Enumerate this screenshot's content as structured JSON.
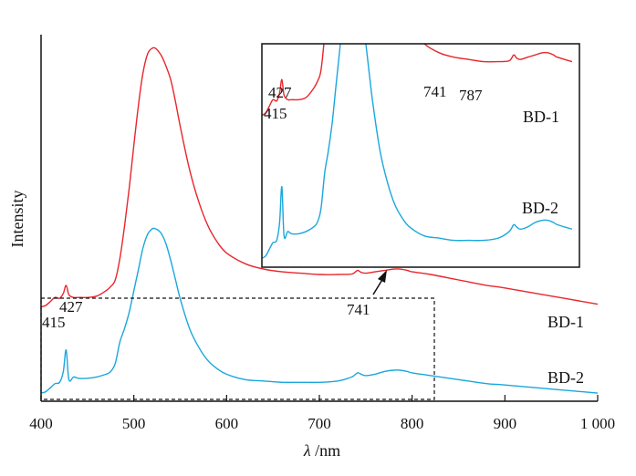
{
  "chart_data": {
    "type": "line",
    "xlabel_italic": "λ",
    "xlabel_unit": " /nm",
    "ylabel": "Intensity",
    "xlim": [
      400,
      1000
    ],
    "xticks": [
      400,
      500,
      600,
      700,
      800,
      900,
      1000
    ],
    "xtick_labels": [
      "400",
      "500",
      "600",
      "700",
      "800",
      "900",
      "1 000"
    ],
    "grid": false,
    "colors": {
      "BD-1": "#e8262c",
      "BD-2": "#1aa7dd"
    },
    "series": [
      {
        "name": "BD-1",
        "x": [
          400,
          405,
          410,
          415,
          420,
          424,
          427,
          430,
          435,
          440,
          450,
          460,
          470,
          475,
          480,
          485,
          490,
          495,
          500,
          505,
          510,
          515,
          520,
          523,
          526,
          530,
          535,
          540,
          545,
          550,
          560,
          570,
          580,
          590,
          600,
          620,
          640,
          660,
          680,
          700,
          720,
          735,
          741,
          745,
          750,
          760,
          770,
          780,
          787,
          795,
          800,
          820,
          850,
          880,
          900,
          950,
          1000
        ],
        "y": [
          0.04,
          0.045,
          0.06,
          0.075,
          0.072,
          0.09,
          0.12,
          0.085,
          0.075,
          0.075,
          0.075,
          0.08,
          0.1,
          0.115,
          0.14,
          0.22,
          0.34,
          0.48,
          0.64,
          0.79,
          0.91,
          0.98,
          1.0,
          1.0,
          0.99,
          0.97,
          0.93,
          0.88,
          0.8,
          0.71,
          0.55,
          0.43,
          0.34,
          0.28,
          0.24,
          0.2,
          0.18,
          0.17,
          0.165,
          0.16,
          0.16,
          0.162,
          0.175,
          0.168,
          0.165,
          0.17,
          0.175,
          0.18,
          0.18,
          0.175,
          0.17,
          0.16,
          0.14,
          0.12,
          0.11,
          0.08,
          0.05
        ]
      },
      {
        "name": "BD-2",
        "x": [
          400,
          405,
          410,
          415,
          420,
          424,
          427,
          430,
          435,
          440,
          450,
          460,
          470,
          475,
          480,
          485,
          490,
          495,
          500,
          505,
          510,
          515,
          520,
          523,
          526,
          530,
          535,
          540,
          545,
          550,
          560,
          570,
          580,
          590,
          600,
          620,
          640,
          660,
          680,
          700,
          720,
          735,
          741,
          745,
          750,
          760,
          770,
          780,
          787,
          795,
          800,
          820,
          850,
          880,
          900,
          950,
          1000
        ],
        "y": [
          -0.28,
          -0.275,
          -0.26,
          -0.245,
          -0.24,
          -0.2,
          -0.12,
          -0.23,
          -0.22,
          -0.225,
          -0.225,
          -0.22,
          -0.21,
          -0.2,
          -0.17,
          -0.09,
          -0.04,
          0.02,
          0.1,
          0.18,
          0.26,
          0.31,
          0.33,
          0.33,
          0.325,
          0.31,
          0.27,
          0.21,
          0.14,
          0.07,
          -0.04,
          -0.11,
          -0.16,
          -0.19,
          -0.21,
          -0.23,
          -0.235,
          -0.24,
          -0.24,
          -0.24,
          -0.235,
          -0.22,
          -0.205,
          -0.21,
          -0.215,
          -0.21,
          -0.2,
          -0.195,
          -0.195,
          -0.2,
          -0.205,
          -0.215,
          -0.23,
          -0.245,
          -0.25,
          -0.265,
          -0.28
        ]
      }
    ],
    "ylim": [
      -0.3,
      1.05
    ],
    "annotations": [
      {
        "text": "415",
        "x": 415
      },
      {
        "text": "427",
        "x": 427
      },
      {
        "text": "741",
        "x": 741
      }
    ],
    "series_labels": [
      "BD-1",
      "BD-2"
    ],
    "inset": {
      "xlim": [
        400,
        830
      ],
      "ylim": [
        -0.3,
        0.2
      ],
      "annotations": [
        "427",
        "415",
        "741",
        "787"
      ],
      "series_labels": [
        "BD-1",
        "BD-2"
      ]
    }
  }
}
